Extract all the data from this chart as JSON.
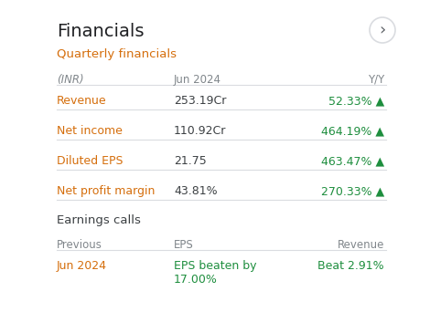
{
  "title": "Financials",
  "section1": "Quarterly financials",
  "col_inr": "(INR)",
  "col_jun": "Jun 2024",
  "col_yy": "Y/Y",
  "rows": [
    [
      "Revenue",
      "253.19Cr",
      "52.33% ▲"
    ],
    [
      "Net income",
      "110.92Cr",
      "464.19% ▲"
    ],
    [
      "Diluted EPS",
      "21.75",
      "463.47% ▲"
    ],
    [
      "Net profit margin",
      "43.81%",
      "270.33% ▲"
    ]
  ],
  "section2": "Earnings calls",
  "earn_headers": [
    "Previous",
    "EPS",
    "Revenue"
  ],
  "earn_row": [
    "Jun 2024",
    "EPS beaten by\n17.00%",
    "Beat 2.91%"
  ],
  "bg_color": "#ffffff",
  "title_color": "#202124",
  "teal_color": "#1a73e8",
  "section_color": "#3c4043",
  "header_color": "#80868b",
  "row_label_color": "#3c4043",
  "value_color": "#3c4043",
  "green_color": "#1e8e3e",
  "divider_color": "#dadce0",
  "arrow_color": "#5f6368",
  "jun2024_color": "#d56e0c"
}
